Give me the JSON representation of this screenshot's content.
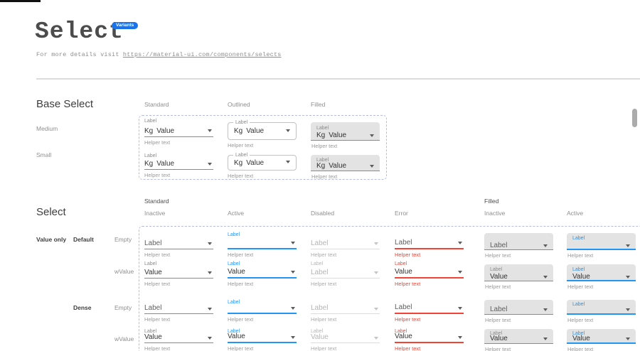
{
  "header": {
    "title": "Select",
    "badge": "Variants",
    "subtitle_prefix": "For more details visit ",
    "subtitle_link": "https://material-ui.com/components/selects"
  },
  "colors": {
    "active_blue": "#2196F3",
    "error_red": "#F44336",
    "badge_blue": "#1a73e8",
    "filled_bg": "#e3e3e3",
    "dashed_border": "#b6bce9"
  },
  "base_section": {
    "heading": "Base Select",
    "columns": [
      "Standard",
      "Outlined",
      "Filled"
    ],
    "rows": [
      "Medium",
      "Small"
    ],
    "cells": [
      {
        "variant": "standard",
        "size": "medium",
        "state": "inactive",
        "float": "Label",
        "adorn": "Kg",
        "text": "Value",
        "helper": "Helper text"
      },
      {
        "variant": "outlined",
        "size": "medium",
        "state": "inactive",
        "float": "Label",
        "adorn": "Kg",
        "text": "Value",
        "helper": "Helper text"
      },
      {
        "variant": "filled",
        "size": "medium",
        "state": "inactive",
        "float": "Label",
        "adorn": "Kg",
        "text": "Value",
        "helper": "Helper text"
      },
      {
        "variant": "standard",
        "size": "small",
        "state": "inactive",
        "float": "Label",
        "adorn": "Kg",
        "text": "Value",
        "helper": "Helper text"
      },
      {
        "variant": "outlined",
        "size": "small",
        "state": "inactive",
        "float": "Label",
        "adorn": "Kg",
        "text": "Value",
        "helper": "Helper text"
      },
      {
        "variant": "filled",
        "size": "small",
        "state": "inactive",
        "float": "Label",
        "adorn": "Kg",
        "text": "Value",
        "helper": "Helper text"
      }
    ]
  },
  "select_section": {
    "heading": "Select",
    "groups": [
      {
        "label": "Standard"
      },
      {
        "label": "Filled"
      }
    ],
    "states": [
      "Inactive",
      "Active",
      "Disabled",
      "Error",
      "Inactive",
      "Active"
    ],
    "row_label": "Value only",
    "row_groups": [
      {
        "label": "Default"
      },
      {
        "label": "Dense"
      }
    ],
    "row_names": [
      "Empty",
      "wValue",
      "Empty",
      "wValue"
    ],
    "cells": [
      {
        "variant": "standard",
        "state": "inactive",
        "dense": false,
        "float": "",
        "text": "Label",
        "helper": "Helper text"
      },
      {
        "variant": "standard",
        "state": "active",
        "dense": false,
        "float": "Label",
        "text": "",
        "helper": "Helper text"
      },
      {
        "variant": "standard",
        "state": "disabled",
        "dense": false,
        "float": "",
        "text": "Label",
        "helper": "Helper text"
      },
      {
        "variant": "standard",
        "state": "error",
        "dense": false,
        "float": "",
        "text": "Label",
        "helper": "Helper text"
      },
      {
        "variant": "filled",
        "state": "inactive",
        "dense": false,
        "float": "",
        "text": "Label",
        "helper": "Helper text"
      },
      {
        "variant": "filled",
        "state": "active",
        "dense": false,
        "float": "Label",
        "text": "",
        "helper": "Helper text"
      },
      {
        "variant": "standard",
        "state": "inactive",
        "dense": false,
        "float": "Label",
        "text": "Value",
        "helper": "Helper text"
      },
      {
        "variant": "standard",
        "state": "active",
        "dense": false,
        "float": "Label",
        "text": "Value",
        "helper": "Helper text"
      },
      {
        "variant": "standard",
        "state": "disabled",
        "dense": false,
        "float": "Label",
        "text": "Label",
        "helper": "Helper text"
      },
      {
        "variant": "standard",
        "state": "error",
        "dense": false,
        "float": "Label",
        "text": "Value",
        "helper": "Helper text"
      },
      {
        "variant": "filled",
        "state": "inactive",
        "dense": false,
        "float": "Label",
        "text": "Value",
        "helper": "Helper text"
      },
      {
        "variant": "filled",
        "state": "active",
        "dense": false,
        "float": "Label",
        "text": "Value",
        "helper": "Helper text"
      },
      {
        "variant": "standard",
        "state": "inactive",
        "dense": true,
        "float": "",
        "text": "Label",
        "helper": "Helper text"
      },
      {
        "variant": "standard",
        "state": "active",
        "dense": true,
        "float": "Label",
        "text": "",
        "helper": "Helper text"
      },
      {
        "variant": "standard",
        "state": "disabled",
        "dense": true,
        "float": "",
        "text": "Label",
        "helper": "Helper text"
      },
      {
        "variant": "standard",
        "state": "error",
        "dense": true,
        "float": "",
        "text": "Label",
        "helper": "Helper text"
      },
      {
        "variant": "filled",
        "state": "inactive",
        "dense": true,
        "float": "",
        "text": "Label",
        "helper": "Helper text"
      },
      {
        "variant": "filled",
        "state": "active",
        "dense": true,
        "float": "Label",
        "text": "",
        "helper": "Helper text"
      },
      {
        "variant": "standard",
        "state": "inactive",
        "dense": true,
        "float": "Label",
        "text": "Value",
        "helper": "Helper text"
      },
      {
        "variant": "standard",
        "state": "active",
        "dense": true,
        "float": "Label",
        "text": "Value",
        "helper": "Helper text"
      },
      {
        "variant": "standard",
        "state": "disabled",
        "dense": true,
        "float": "Label",
        "text": "Value",
        "helper": "Helper text"
      },
      {
        "variant": "standard",
        "state": "error",
        "dense": true,
        "float": "Label",
        "text": "Value",
        "helper": "Helper text"
      },
      {
        "variant": "filled",
        "state": "inactive",
        "dense": true,
        "float": "Label",
        "text": "Value",
        "helper": "Helper text"
      },
      {
        "variant": "filled",
        "state": "active",
        "dense": true,
        "float": "Label",
        "text": "Value",
        "helper": "Helper text"
      }
    ]
  }
}
